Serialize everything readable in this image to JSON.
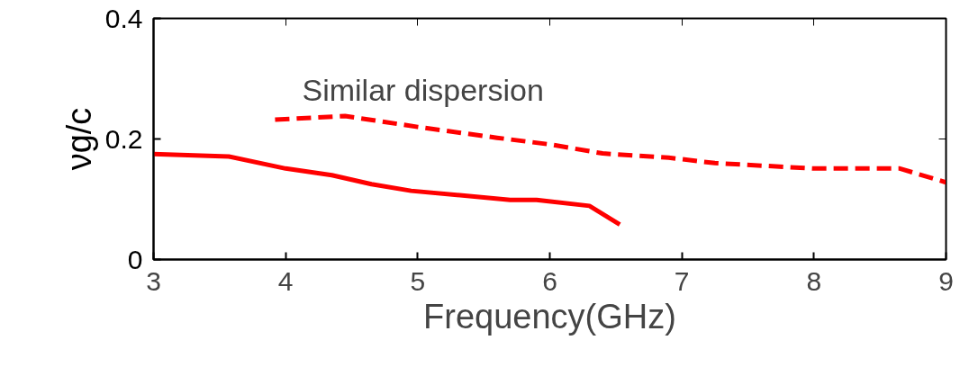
{
  "chart_data": {
    "type": "line",
    "xlabel": "Frequency(GHz)",
    "ylabel": "νg/c",
    "annotations": [
      "Similar dispersion"
    ],
    "xlim": [
      3,
      9
    ],
    "xticks": [
      3,
      4,
      5,
      6,
      7,
      8,
      9
    ],
    "ylim": [
      0,
      0.4
    ],
    "yticks": [
      0,
      0.2,
      0.4
    ],
    "grid": false,
    "marker": "none",
    "series": [
      {
        "color": "#ff0000",
        "line_style": "solid",
        "x": [
          3.0,
          3.57,
          4.0,
          4.35,
          4.65,
          4.95,
          5.7,
          5.9,
          6.3,
          6.53
        ],
        "values": [
          0.175,
          0.171,
          0.151,
          0.14,
          0.125,
          0.114,
          0.099,
          0.099,
          0.089,
          0.058
        ]
      },
      {
        "color": "#ff0000",
        "line_style": "dashed",
        "x": [
          3.92,
          4.45,
          5.0,
          5.6,
          6.0,
          6.4,
          6.9,
          7.25,
          8.0,
          8.65,
          9.0
        ],
        "values": [
          0.232,
          0.238,
          0.22,
          0.202,
          0.191,
          0.176,
          0.169,
          0.16,
          0.151,
          0.151,
          0.128
        ]
      }
    ]
  }
}
